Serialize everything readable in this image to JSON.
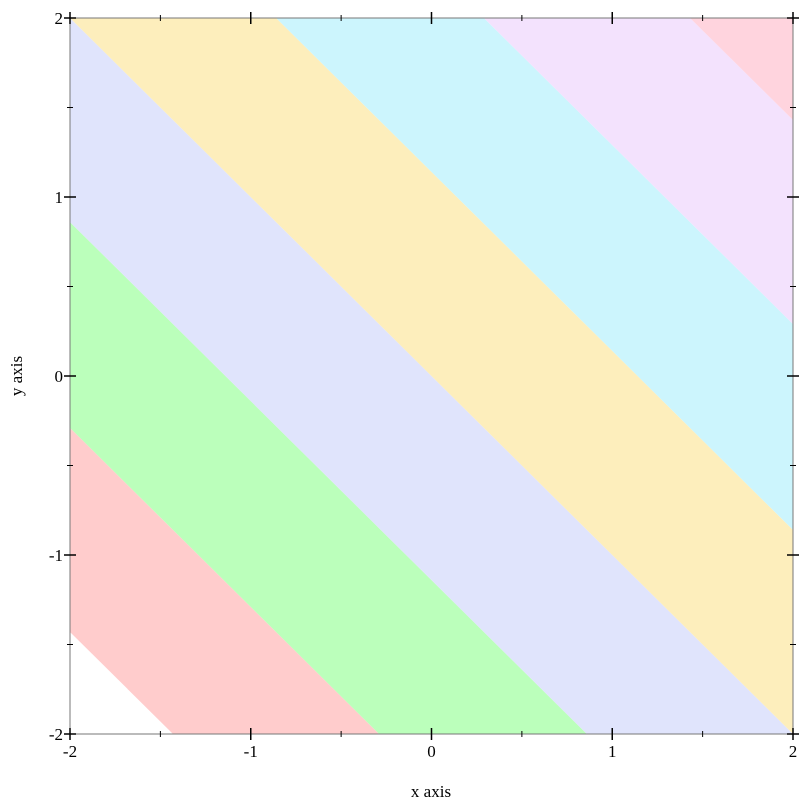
{
  "chart_data": {
    "type": "contour-intervals",
    "xlabel": "x axis",
    "ylabel": "y axis",
    "xlim": [
      -2,
      2
    ],
    "ylim": [
      -2,
      2
    ],
    "xticks": [
      "-2",
      "-1",
      "0",
      "1",
      "2"
    ],
    "yticks": [
      "-2",
      "-1",
      "0",
      "1",
      "2"
    ],
    "grid": false,
    "function": "x + y",
    "levels": [
      -3.43,
      -2.29,
      -1.14,
      0,
      1.14,
      2.29,
      3.43
    ],
    "band_colors": [
      "#ffffff",
      "#ffcccc",
      "#bbffbb",
      "#e0e4fc",
      "#fdeebc",
      "#ccf5fd",
      "#f3e2fd",
      "#ffd4de"
    ]
  }
}
